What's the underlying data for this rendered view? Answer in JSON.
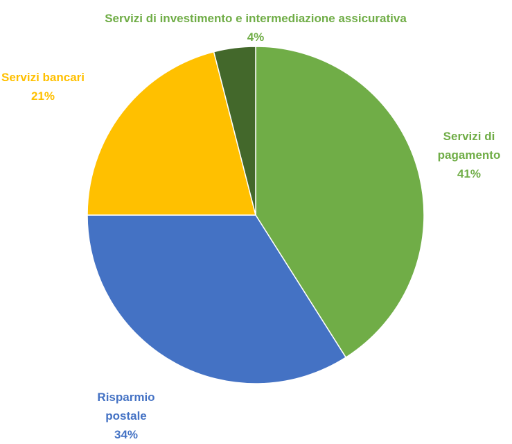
{
  "chart_data": {
    "type": "pie",
    "categories": [
      "Servizi di pagamento",
      "Risparmio postale",
      "Servizi bancari",
      "Servizi di investimento e intermediazione assicurativa"
    ],
    "values": [
      41,
      34,
      21,
      4
    ],
    "value_labels": [
      "41%",
      "34%",
      "21%",
      "4%"
    ],
    "colors": [
      "#70ad47",
      "#4472c4",
      "#ffc000",
      "#43682b"
    ],
    "label_colors": [
      "#70ad47",
      "#4472c4",
      "#ffc000",
      "#70ad47"
    ]
  }
}
